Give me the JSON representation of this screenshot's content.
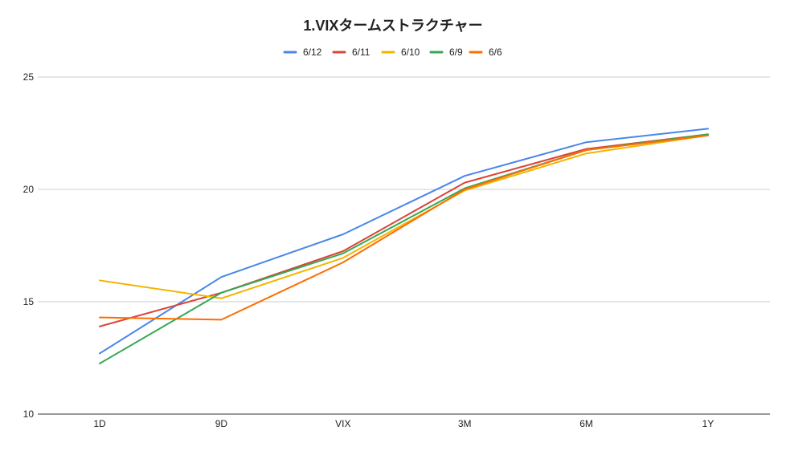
{
  "chart_data": {
    "type": "line",
    "title": "1.VIXタームストラクチャー",
    "xlabel": "",
    "ylabel": "",
    "categories": [
      "1D",
      "9D",
      "VIX",
      "3M",
      "6M",
      "1Y"
    ],
    "ylim": [
      10,
      25
    ],
    "yticks": [
      "10",
      "15",
      "20",
      "25"
    ],
    "grid": true,
    "legend_position": "top",
    "series": [
      {
        "name": "6/12",
        "color": "#4a86e8",
        "values": [
          12.7,
          16.1,
          18.0,
          20.6,
          22.1,
          22.7
        ]
      },
      {
        "name": "6/11",
        "color": "#db4437",
        "values": [
          13.9,
          15.4,
          17.25,
          20.3,
          21.8,
          22.45
        ]
      },
      {
        "name": "6/10",
        "color": "#f4b400",
        "values": [
          15.95,
          15.15,
          16.95,
          19.95,
          21.6,
          22.4
        ]
      },
      {
        "name": "6/9",
        "color": "#34a853",
        "values": [
          12.25,
          15.4,
          17.15,
          20.05,
          21.75,
          22.45
        ]
      },
      {
        "name": "6/6",
        "color": "#ff6d01",
        "values": [
          14.3,
          14.2,
          16.75,
          20.0,
          21.75,
          22.4
        ]
      }
    ]
  }
}
